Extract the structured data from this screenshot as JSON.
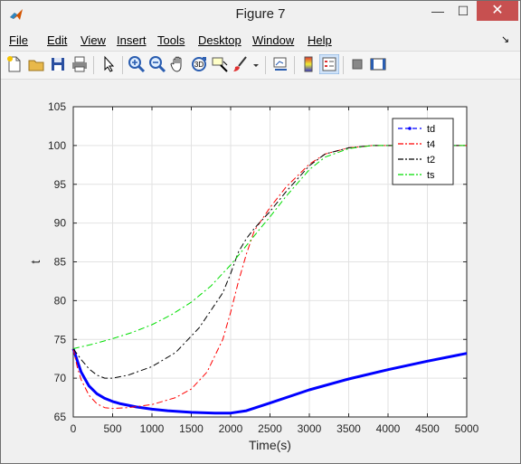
{
  "window": {
    "title": "Figure 7"
  },
  "title_controls": {
    "minimize": "—",
    "maximize": "☐",
    "close": "✕"
  },
  "menu": [
    "File",
    "Edit",
    "View",
    "Insert",
    "Tools",
    "Desktop",
    "Window",
    "Help"
  ],
  "menu_arrow": "↘",
  "colors": {
    "td": "#0000ff",
    "t4": "#ff0000",
    "t2": "#000000",
    "ts": "#00dd00"
  },
  "chart_data": {
    "type": "line",
    "xlabel": "Time(s)",
    "ylabel": "t",
    "xlim": [
      0,
      5000
    ],
    "ylim": [
      65,
      105
    ],
    "xticks": [
      0,
      500,
      1000,
      1500,
      2000,
      2500,
      3000,
      3500,
      4000,
      4500,
      5000
    ],
    "yticks": [
      65,
      70,
      75,
      80,
      85,
      90,
      95,
      100,
      105
    ],
    "grid": true,
    "legend_position": "top-right",
    "series": [
      {
        "name": "td",
        "style": "dashed-marker",
        "x": [
          0,
          50,
          100,
          150,
          200,
          300,
          400,
          500,
          600,
          800,
          1000,
          1200,
          1500,
          1800,
          2000,
          2200,
          2500,
          3000,
          3500,
          4000,
          4500,
          5000
        ],
        "y": [
          73.8,
          72.3,
          70.8,
          69.9,
          69.0,
          68.0,
          67.4,
          67.0,
          66.7,
          66.3,
          66.0,
          65.8,
          65.6,
          65.5,
          65.5,
          65.8,
          66.8,
          68.5,
          69.9,
          71.1,
          72.2,
          73.2
        ]
      },
      {
        "name": "t4",
        "style": "dash-dot",
        "x": [
          0,
          50,
          100,
          200,
          300,
          400,
          500,
          700,
          1000,
          1300,
          1500,
          1700,
          1900,
          2000,
          2100,
          2200,
          2300,
          2500,
          2700,
          3000,
          3200,
          3500,
          3800,
          4000,
          4500,
          5000
        ],
        "y": [
          73.8,
          71.5,
          69.8,
          67.8,
          66.7,
          66.2,
          66.1,
          66.2,
          66.6,
          67.5,
          68.6,
          70.8,
          75.0,
          78.5,
          82.5,
          86.0,
          89.0,
          92.0,
          94.6,
          97.6,
          98.9,
          99.7,
          100.0,
          100.0,
          100.0,
          100.0
        ]
      },
      {
        "name": "t2",
        "style": "dash-dot",
        "x": [
          0,
          100,
          200,
          300,
          400,
          500,
          700,
          1000,
          1300,
          1600,
          1900,
          2000,
          2100,
          2200,
          2300,
          2500,
          2700,
          3000,
          3200,
          3500,
          3800,
          4000,
          4500,
          5000
        ],
        "y": [
          73.8,
          72.4,
          71.2,
          70.4,
          70.0,
          70.0,
          70.4,
          71.5,
          73.3,
          76.5,
          81.0,
          83.5,
          86.3,
          88.0,
          89.3,
          91.5,
          94.0,
          97.4,
          98.9,
          99.7,
          100.0,
          100.0,
          100.0,
          100.0
        ]
      },
      {
        "name": "ts",
        "style": "dash-dot",
        "x": [
          0,
          250,
          500,
          750,
          1000,
          1250,
          1500,
          1750,
          2000,
          2200,
          2400,
          2500,
          2700,
          3000,
          3200,
          3500,
          3800,
          4000,
          4500,
          5000
        ],
        "y": [
          73.8,
          74.4,
          75.1,
          75.9,
          76.9,
          78.2,
          79.8,
          81.9,
          84.6,
          87.1,
          89.6,
          90.8,
          93.4,
          96.9,
          98.5,
          99.6,
          100.0,
          100.0,
          100.0,
          100.0
        ]
      }
    ]
  }
}
